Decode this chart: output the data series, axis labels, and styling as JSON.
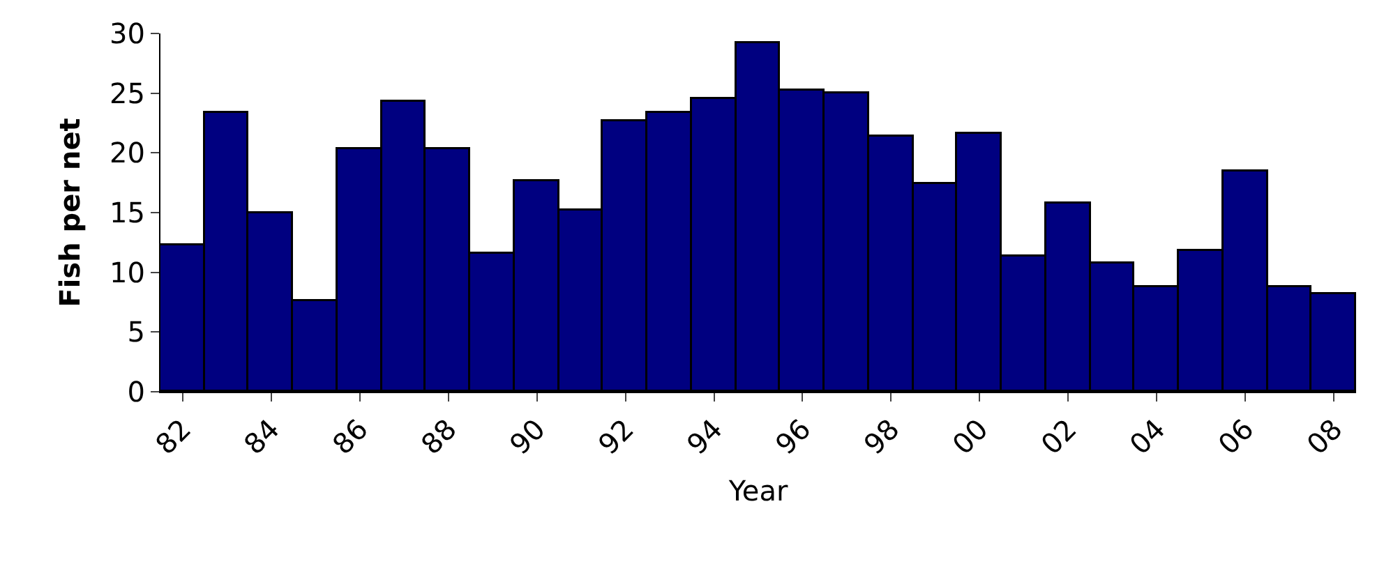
{
  "chart_data": {
    "type": "bar",
    "xlabel": "Year",
    "ylabel": "Fish per net",
    "categories": [
      "82",
      null,
      "84",
      null,
      "86",
      null,
      "88",
      null,
      "90",
      null,
      "92",
      null,
      "94",
      null,
      "96",
      null,
      "98",
      null,
      "00",
      null,
      "02",
      null,
      "04",
      null,
      "06",
      null,
      "08"
    ],
    "values": [
      12.2,
      23.4,
      14.9,
      7.6,
      20.3,
      24.3,
      20.3,
      11.6,
      17.6,
      15.2,
      22.7,
      23.4,
      24.5,
      29.2,
      25.2,
      25.0,
      21.4,
      17.4,
      21.6,
      11.3,
      15.8,
      10.7,
      8.7,
      11.8,
      18.5,
      8.7,
      8.2
    ],
    "color": "#000080",
    "ylim": [
      0,
      30
    ],
    "yticks": [
      0,
      5,
      10,
      15,
      20,
      25,
      30
    ]
  }
}
